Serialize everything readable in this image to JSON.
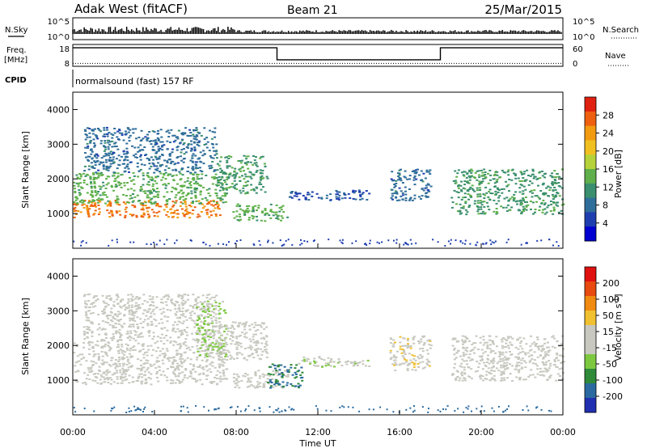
{
  "header": {
    "station": "Adak West (fitACF)",
    "beam": "Beam 21",
    "date": "25/Mar/2015"
  },
  "status_panels": {
    "nsky": {
      "label": "N.Sky",
      "right_label": "N.Search",
      "left_ticks": [
        "10^5",
        "10^0"
      ],
      "right_ticks": [
        "10^5",
        "10^0"
      ]
    },
    "freq": {
      "label_line1": "Freq.",
      "label_line2": "[MHz]",
      "left_ticks": [
        "18",
        "8"
      ],
      "right_ticks": [
        "60",
        "0"
      ],
      "right_label": "Nave",
      "high_level_mhz": 16.5,
      "low_level_mhz": 11,
      "low_interval_hours": [
        10,
        18
      ],
      "nave_level": 8
    },
    "cpid": {
      "label": "CPID",
      "mode": "normalsound (fast) 157 RF"
    }
  },
  "colorbars": {
    "power": {
      "label": "Power [dB]",
      "ticks": [
        "28",
        "24",
        "20",
        "16",
        "12",
        "8",
        "4"
      ],
      "colors": [
        "#0000d0",
        "#1f3fb0",
        "#2f6e9a",
        "#3a8f6e",
        "#5fb04a",
        "#b6d23a",
        "#f0c020",
        "#f29a10",
        "#ee6010",
        "#e02010"
      ]
    },
    "velocity": {
      "label": "Velocity [m s",
      "label_sup": "-1",
      "label_end": "]",
      "ticks": [
        "200",
        "100",
        "50",
        "15",
        "-15",
        "-50",
        "-100",
        "-200"
      ],
      "colors": [
        "#2030b0",
        "#2a6aa0",
        "#2f8a3a",
        "#7cc940",
        "#c8c8c0",
        "#c8c8c0",
        "#f0c030",
        "#f08a10",
        "#e84a10",
        "#e01010"
      ]
    }
  },
  "axes": {
    "ylabel": "Slant Range [km]",
    "yticks": [
      "1000",
      "2000",
      "3000",
      "4000"
    ],
    "xticks": [
      "00:00",
      "04:00",
      "08:00",
      "12:00",
      "16:00",
      "20:00",
      "00:00"
    ],
    "xlabel": "Time UT"
  },
  "chart_data": [
    {
      "type": "heatmap",
      "title": "",
      "xlabel": "",
      "ylabel": "Slant Range [km]",
      "x_range_hours": [
        0,
        24
      ],
      "ylim_km": [
        0,
        4500
      ],
      "variable": "Power [dB]",
      "color_range": [
        0,
        32
      ],
      "regions": [
        {
          "hours": [
            0,
            7.2
          ],
          "range_km": [
            900,
            1400
          ],
          "value": 26
        },
        {
          "hours": [
            0,
            7.5
          ],
          "range_km": [
            1300,
            2200
          ],
          "value": 14
        },
        {
          "hours": [
            0.5,
            7
          ],
          "range_km": [
            2200,
            3500
          ],
          "value": 8
        },
        {
          "hours": [
            7,
            9.5
          ],
          "range_km": [
            1600,
            2700
          ],
          "value": 12
        },
        {
          "hours": [
            7.8,
            10.5
          ],
          "range_km": [
            800,
            1300
          ],
          "value": 14
        },
        {
          "hours": [
            10.5,
            14.5
          ],
          "range_km": [
            1400,
            1700
          ],
          "value": 6
        },
        {
          "hours": [
            15.5,
            17.5
          ],
          "range_km": [
            1400,
            2300
          ],
          "value": 8
        },
        {
          "hours": [
            18.5,
            24
          ],
          "range_km": [
            1000,
            2300
          ],
          "value": 12
        }
      ]
    },
    {
      "type": "heatmap",
      "title": "",
      "xlabel": "Time UT",
      "ylabel": "Slant Range [km]",
      "x_range_hours": [
        0,
        24
      ],
      "ylim_km": [
        0,
        4500
      ],
      "variable": "Velocity [m/s]",
      "color_range": [
        -250,
        250
      ],
      "regions": [
        {
          "hours": [
            0,
            7.5
          ],
          "range_km": [
            900,
            2200
          ],
          "value": 0
        },
        {
          "hours": [
            0.5,
            7
          ],
          "range_km": [
            2200,
            3500
          ],
          "value": 0
        },
        {
          "hours": [
            6,
            7.5
          ],
          "range_km": [
            1700,
            3300
          ],
          "value": -60
        },
        {
          "hours": [
            7,
            9.5
          ],
          "range_km": [
            1600,
            2700
          ],
          "value": 0
        },
        {
          "hours": [
            7.8,
            10.5
          ],
          "range_km": [
            800,
            1300
          ],
          "value": 0
        },
        {
          "hours": [
            9.5,
            11.2
          ],
          "range_km": [
            800,
            1500
          ],
          "value": -150
        },
        {
          "hours": [
            11,
            14.5
          ],
          "range_km": [
            1400,
            1700
          ],
          "value": -30
        },
        {
          "hours": [
            15.5,
            17.5
          ],
          "range_km": [
            1300,
            2300
          ],
          "value": 30
        },
        {
          "hours": [
            18.5,
            24
          ],
          "range_km": [
            1000,
            2300
          ],
          "value": 0
        }
      ]
    }
  ]
}
